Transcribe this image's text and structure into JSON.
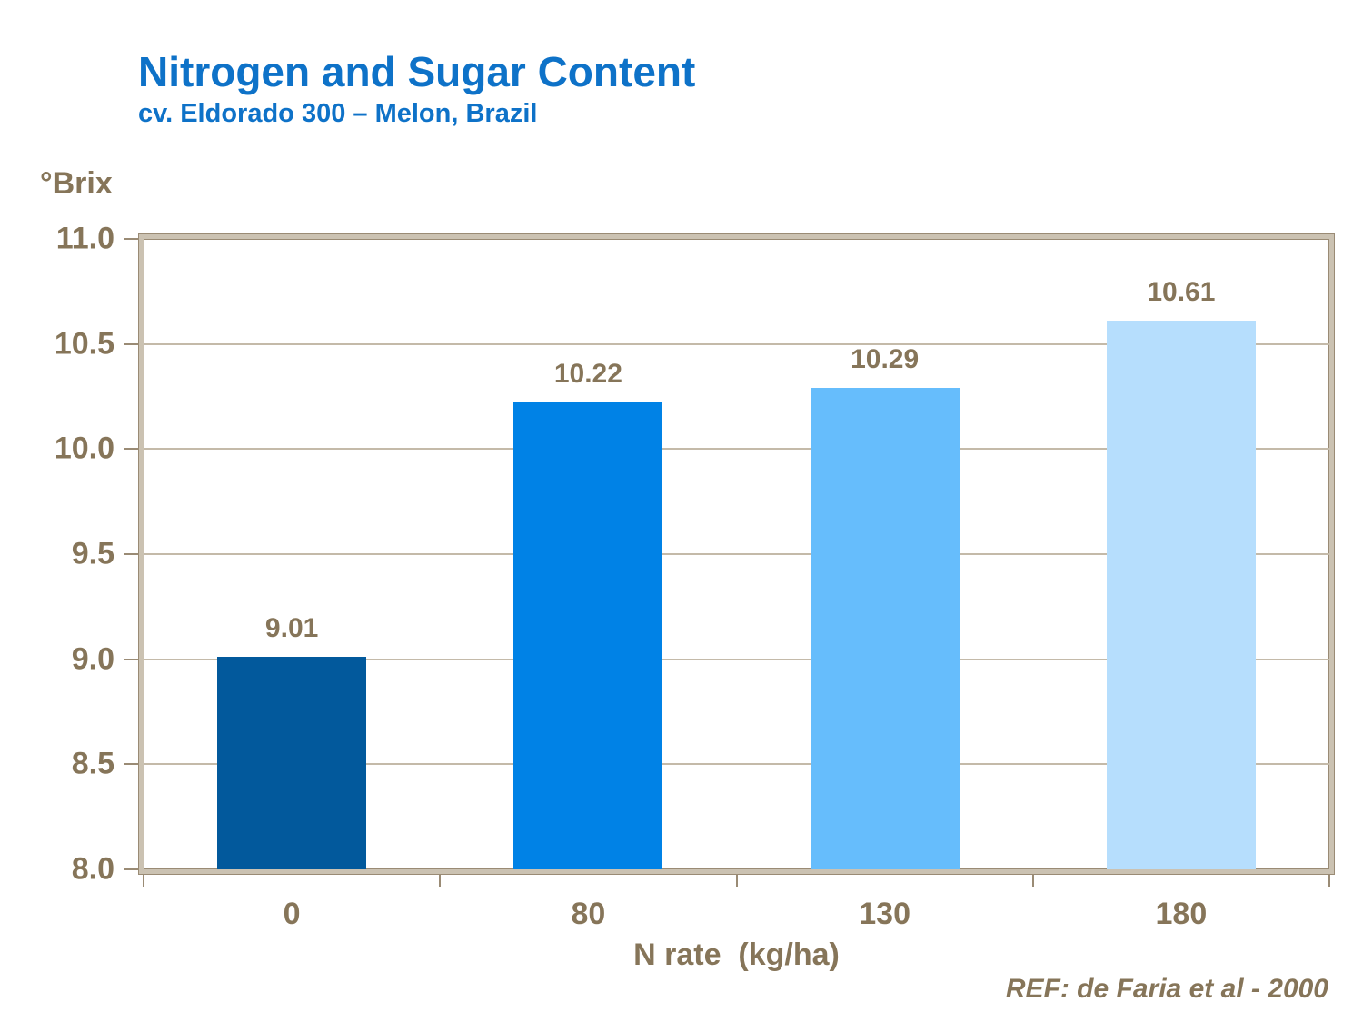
{
  "header": {
    "title": "Nitrogen and Sugar Content",
    "subtitle": "cv. Eldorado 300 – Melon, Brazil"
  },
  "footer": {
    "reference": "REF: de Faria et al - 2000"
  },
  "chart_data": {
    "type": "bar",
    "title": "Nitrogen and Sugar Content",
    "subtitle": "cv. Eldorado 300 – Melon, Brazil",
    "unit_label": "°Brix",
    "xlabel": "N rate  (kg/ha)",
    "ylabel": "°Brix",
    "categories": [
      "0",
      "80",
      "130",
      "180"
    ],
    "values": [
      9.01,
      10.22,
      10.29,
      10.61
    ],
    "value_labels": [
      "9.01",
      "10.22",
      "10.29",
      "10.61"
    ],
    "bar_colors": [
      "#02599C",
      "#0082E6",
      "#66BDFC",
      "#B6DEFD"
    ],
    "ylim": [
      8.0,
      11.0
    ],
    "ytick_step": 0.5,
    "yticks": [
      "11.0",
      "10.5",
      "10.0",
      "9.5",
      "9.0",
      "8.5",
      "8.0"
    ],
    "gridlines": [
      8.5,
      9.0,
      9.5,
      10.0,
      10.5
    ],
    "grid": true,
    "legend": "none",
    "styling": {
      "title_color": "#0E72C8",
      "axis_text_color": "#867559",
      "frame_color": "#CBC2B2",
      "frame_edge_color": "#9A8B75",
      "gridline_color": "#C4BAA9",
      "background": "#FFFFFF"
    }
  }
}
